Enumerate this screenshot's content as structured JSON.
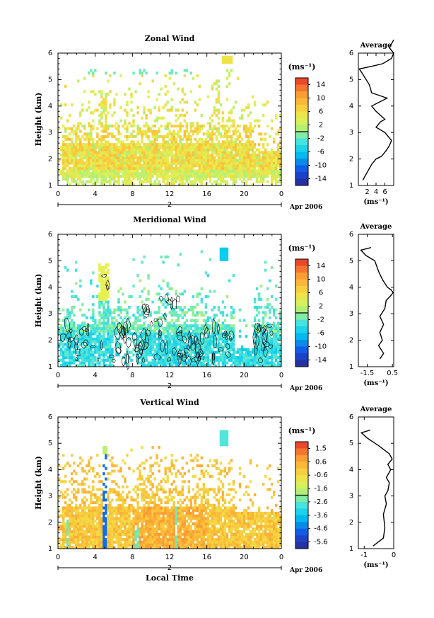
{
  "chart_data": [
    {
      "type": "heatmap",
      "title": "Zonal Wind",
      "ylabel": "Height (km)",
      "ylim": [
        1,
        6
      ],
      "yticks": [
        "1",
        "2",
        "3",
        "4",
        "5",
        "6"
      ],
      "xlim": [
        0,
        24
      ],
      "xticks": [
        "0",
        "4",
        "8",
        "12",
        "16",
        "20",
        "0"
      ],
      "date_axis": {
        "day": "2",
        "label": "Apr 2006"
      },
      "colorbar": {
        "unit": "(ms⁻¹)",
        "range": [
          -16,
          16
        ],
        "ticks": [
          "14",
          "10",
          "6",
          "2",
          "-2",
          "-6",
          "-10",
          "-14"
        ]
      },
      "contours": false,
      "field": {
        "mode": "zonal"
      },
      "profile": {
        "title": "Average",
        "xlim": [
          0,
          8
        ],
        "xticks": [
          "2",
          "4",
          "6"
        ],
        "xlabel": "(ms⁻¹)",
        "ylim": [
          1,
          6
        ],
        "yticks": [
          "1",
          "2",
          "3",
          "4",
          "5",
          "6"
        ],
        "points": [
          [
            1.0,
            1.2
          ],
          [
            2.0,
            1.5
          ],
          [
            3.0,
            1.8
          ],
          [
            4.0,
            2.0
          ],
          [
            5.2,
            2.1
          ],
          [
            6.2,
            2.3
          ],
          [
            7.0,
            2.5
          ],
          [
            7.5,
            2.7
          ],
          [
            6.0,
            3.0
          ],
          [
            4.0,
            3.2
          ],
          [
            5.0,
            3.4
          ],
          [
            6.0,
            3.5
          ],
          [
            4.0,
            3.8
          ],
          [
            3.0,
            4.0
          ],
          [
            6.5,
            4.3
          ],
          [
            3.0,
            4.5
          ],
          [
            2.5,
            4.8
          ],
          [
            1.0,
            5.2
          ],
          [
            0.2,
            5.4
          ],
          [
            3.0,
            5.5
          ],
          [
            5.5,
            5.6
          ],
          [
            7.5,
            5.8
          ],
          [
            8.0,
            6.0
          ],
          [
            7.0,
            6.2
          ],
          [
            8.0,
            6.5
          ]
        ]
      }
    },
    {
      "type": "heatmap",
      "title": "Meridional Wind",
      "ylabel": "Height (km)",
      "ylim": [
        1,
        6
      ],
      "yticks": [
        "1",
        "2",
        "3",
        "4",
        "5",
        "6"
      ],
      "xlim": [
        0,
        24
      ],
      "xticks": [
        "0",
        "4",
        "8",
        "12",
        "16",
        "20",
        "0"
      ],
      "date_axis": {
        "day": "2",
        "label": "Apr 2006"
      },
      "colorbar": {
        "unit": "(ms⁻¹)",
        "range": [
          -16,
          16
        ],
        "ticks": [
          "14",
          "10",
          "6",
          "2",
          "-2",
          "-6",
          "-10",
          "-14"
        ]
      },
      "contours": true,
      "field": {
        "mode": "meridional"
      },
      "profile": {
        "title": "Average",
        "xlim": [
          -2.2,
          0.6
        ],
        "xticks": [
          "-1.5",
          "0.5"
        ],
        "xlabel": "(ms⁻¹)",
        "ylim": [
          1,
          6
        ],
        "yticks": [
          "1",
          "2",
          "3",
          "4",
          "5",
          "6"
        ],
        "points": [
          [
            -0.5,
            1.3
          ],
          [
            -0.2,
            1.5
          ],
          [
            -0.6,
            1.8
          ],
          [
            -0.3,
            2.0
          ],
          [
            -0.5,
            2.3
          ],
          [
            -0.2,
            2.6
          ],
          [
            -0.5,
            2.9
          ],
          [
            -0.1,
            3.2
          ],
          [
            0.0,
            3.5
          ],
          [
            0.4,
            3.7
          ],
          [
            0.55,
            3.8
          ],
          [
            0.4,
            3.9
          ],
          [
            0.1,
            4.0
          ],
          [
            -0.3,
            4.3
          ],
          [
            -0.6,
            4.6
          ],
          [
            -0.9,
            5.0
          ],
          [
            -1.6,
            5.2
          ],
          [
            -2.0,
            5.4
          ],
          [
            -1.2,
            5.5
          ]
        ]
      }
    },
    {
      "type": "heatmap",
      "title": "Vertical Wind",
      "xlabel": "Local Time",
      "ylabel": "Height (km)",
      "ylim": [
        1,
        6
      ],
      "yticks": [
        "1",
        "2",
        "3",
        "4",
        "5",
        "6"
      ],
      "xlim": [
        0,
        24
      ],
      "xticks": [
        "0",
        "4",
        "8",
        "12",
        "16",
        "20",
        "0"
      ],
      "date_axis": {
        "day": "2",
        "label": "Apr 2006"
      },
      "colorbar": {
        "unit": "(ms⁻¹)",
        "range": [
          -6,
          2
        ],
        "ticks": [
          "1.5",
          "0.6",
          "-0.6",
          "-1.6",
          "-2.6",
          "-3.6",
          "-4.6",
          "-5.6"
        ]
      },
      "contours": false,
      "field": {
        "mode": "vertical"
      },
      "profile": {
        "title": "Average",
        "xlim": [
          -1.2,
          0
        ],
        "xticks": [
          "-1",
          "0"
        ],
        "xlabel": "(ms⁻¹)",
        "ylim": [
          1,
          6
        ],
        "yticks": [
          "1",
          "2",
          "3",
          "4",
          "5",
          "6"
        ],
        "points": [
          [
            -0.7,
            1.1
          ],
          [
            -0.35,
            1.4
          ],
          [
            -0.3,
            1.8
          ],
          [
            -0.35,
            2.3
          ],
          [
            -0.25,
            2.7
          ],
          [
            -0.3,
            3.0
          ],
          [
            -0.2,
            3.2
          ],
          [
            -0.15,
            3.5
          ],
          [
            -0.25,
            3.7
          ],
          [
            -0.1,
            4.0
          ],
          [
            -0.2,
            4.2
          ],
          [
            -0.05,
            4.4
          ],
          [
            -0.15,
            4.6
          ],
          [
            -0.5,
            4.9
          ],
          [
            -0.9,
            5.2
          ],
          [
            -1.1,
            5.4
          ],
          [
            -0.8,
            5.5
          ]
        ]
      }
    }
  ]
}
